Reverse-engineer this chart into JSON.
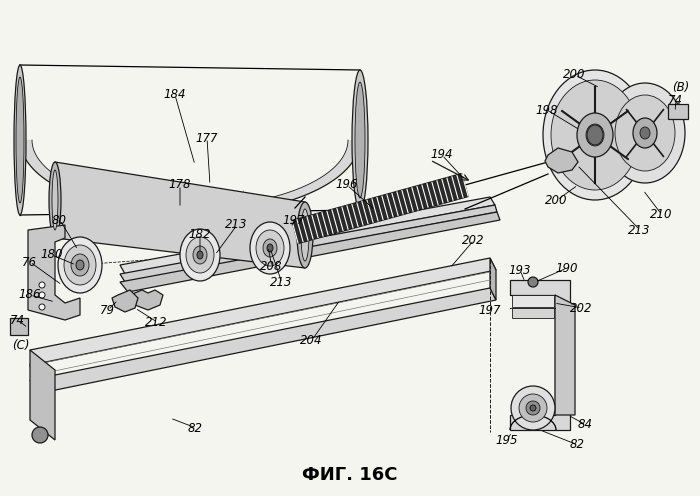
{
  "title": "ФИГ. 16C",
  "bg_color": "#f5f5f0",
  "line_color": "#000000",
  "title_fontsize": 13,
  "label_fontsize": 8.5,
  "fig_width": 7.0,
  "fig_height": 4.96,
  "dpi": 100
}
